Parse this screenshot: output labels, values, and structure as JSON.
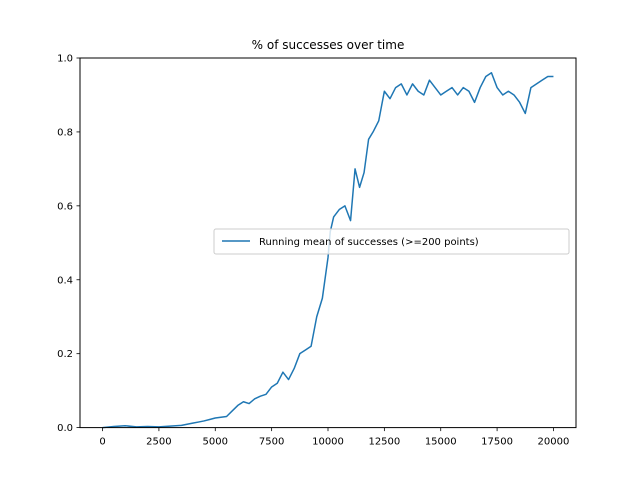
{
  "chart_data": {
    "type": "line",
    "title": "% of successes over time",
    "xlabel": "",
    "ylabel": "",
    "xlim": [
      -1000,
      21000
    ],
    "ylim": [
      0.0,
      1.0
    ],
    "xticks": [
      0,
      2500,
      5000,
      7500,
      10000,
      12500,
      15000,
      17500,
      20000
    ],
    "xtick_labels": [
      "0",
      "2500",
      "5000",
      "7500",
      "10000",
      "12500",
      "15000",
      "17500",
      "20000"
    ],
    "yticks": [
      0.0,
      0.2,
      0.4,
      0.6,
      0.8,
      1.0
    ],
    "ytick_labels": [
      "0.0",
      "0.2",
      "0.4",
      "0.6",
      "0.8",
      "1.0"
    ],
    "grid": false,
    "legend_position": "center-right",
    "series": [
      {
        "name": "Running mean of successes (>=200 points)",
        "color": "#1f77b4",
        "x": [
          0,
          500,
          1000,
          1500,
          2000,
          2500,
          3000,
          3500,
          4000,
          4250,
          4500,
          4750,
          5000,
          5250,
          5500,
          5750,
          6000,
          6250,
          6500,
          6750,
          7000,
          7250,
          7500,
          7750,
          8000,
          8250,
          8500,
          8750,
          9000,
          9250,
          9500,
          9750,
          10000,
          10100,
          10250,
          10500,
          10750,
          11000,
          11200,
          11400,
          11600,
          11800,
          12000,
          12250,
          12500,
          12750,
          13000,
          13250,
          13500,
          13750,
          14000,
          14250,
          14500,
          14750,
          15000,
          15250,
          15500,
          15750,
          16000,
          16250,
          16500,
          16750,
          17000,
          17250,
          17500,
          17750,
          18000,
          18250,
          18500,
          18750,
          19000,
          19250,
          19500,
          19750,
          20000
        ],
        "values": [
          0.0,
          0.003,
          0.005,
          0.002,
          0.003,
          0.002,
          0.004,
          0.006,
          0.012,
          0.015,
          0.018,
          0.022,
          0.026,
          0.028,
          0.03,
          0.045,
          0.06,
          0.07,
          0.065,
          0.078,
          0.085,
          0.09,
          0.11,
          0.12,
          0.15,
          0.13,
          0.16,
          0.2,
          0.21,
          0.22,
          0.3,
          0.35,
          0.46,
          0.53,
          0.57,
          0.59,
          0.6,
          0.56,
          0.7,
          0.65,
          0.69,
          0.78,
          0.8,
          0.83,
          0.91,
          0.89,
          0.92,
          0.93,
          0.9,
          0.93,
          0.91,
          0.9,
          0.94,
          0.92,
          0.9,
          0.91,
          0.92,
          0.9,
          0.92,
          0.91,
          0.88,
          0.92,
          0.95,
          0.96,
          0.92,
          0.9,
          0.91,
          0.9,
          0.88,
          0.85,
          0.92,
          0.93,
          0.94,
          0.95,
          0.95
        ]
      }
    ]
  }
}
